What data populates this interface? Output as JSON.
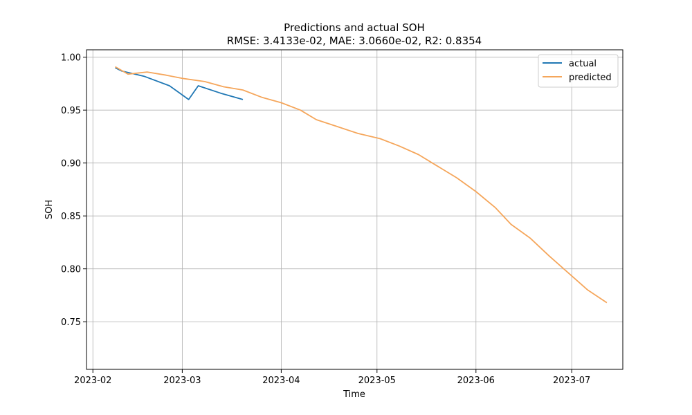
{
  "chart_data": {
    "type": "line",
    "title": "Predictions and actual SOH",
    "subtitle": "RMSE: 3.4133e-02, MAE: 3.0660e-02, R2: 0.8354",
    "xlabel": "Time",
    "ylabel": "SOH",
    "xlim": [
      "2023-01-30",
      "2023-07-17"
    ],
    "ylim": [
      0.705,
      1.007
    ],
    "x_ticks": [
      "2023-02",
      "2023-03",
      "2023-04",
      "2023-05",
      "2023-06",
      "2023-07"
    ],
    "y_ticks": [
      "0.75",
      "0.80",
      "0.85",
      "0.90",
      "0.95",
      "1.00"
    ],
    "grid": true,
    "legend": "top-right",
    "series": [
      {
        "name": "actual",
        "color": "#1f77b4",
        "points": [
          [
            "2023-02-08",
            0.99
          ],
          [
            "2023-02-10",
            0.987
          ],
          [
            "2023-02-17",
            0.982
          ],
          [
            "2023-02-25",
            0.973
          ],
          [
            "2023-03-06",
            0.973
          ],
          [
            "2023-03-13",
            0.966
          ],
          [
            "2023-03-20",
            0.96
          ],
          [
            "2023-03-03",
            0.96
          ]
        ]
      },
      {
        "name": "predicted",
        "color": "#f5a65b",
        "points": [
          [
            "2023-02-08",
            0.991
          ],
          [
            "2023-02-12",
            0.984
          ],
          [
            "2023-02-18",
            0.986
          ],
          [
            "2023-02-24",
            0.983
          ],
          [
            "2023-03-01",
            0.98
          ],
          [
            "2023-03-08",
            0.977
          ],
          [
            "2023-03-14",
            0.972
          ],
          [
            "2023-03-20",
            0.969
          ],
          [
            "2023-03-26",
            0.962
          ],
          [
            "2023-04-01",
            0.957
          ],
          [
            "2023-04-07",
            0.95
          ],
          [
            "2023-04-12",
            0.941
          ],
          [
            "2023-04-18",
            0.935
          ],
          [
            "2023-04-25",
            0.928
          ],
          [
            "2023-05-02",
            0.923
          ],
          [
            "2023-05-08",
            0.916
          ],
          [
            "2023-05-14",
            0.908
          ],
          [
            "2023-05-20",
            0.897
          ],
          [
            "2023-05-26",
            0.886
          ],
          [
            "2023-06-01",
            0.873
          ],
          [
            "2023-06-07",
            0.858
          ],
          [
            "2023-06-12",
            0.842
          ],
          [
            "2023-06-18",
            0.829
          ],
          [
            "2023-06-24",
            0.812
          ],
          [
            "2023-06-30",
            0.796
          ],
          [
            "2023-07-06",
            0.78
          ],
          [
            "2023-07-12",
            0.768
          ]
        ]
      }
    ]
  }
}
